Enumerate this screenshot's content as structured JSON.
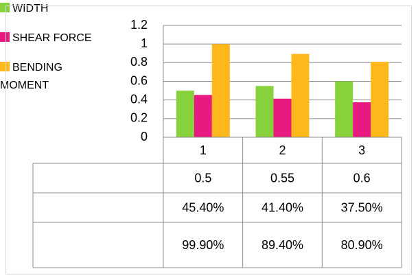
{
  "chart_data": {
    "type": "bar",
    "categories": [
      "1",
      "2",
      "3"
    ],
    "series": [
      {
        "name": "WIDTH",
        "color": "#86d13c",
        "values": [
          0.5,
          0.55,
          0.6
        ]
      },
      {
        "name": "SHEAR FORCE",
        "color": "#e8197f",
        "values": [
          0.454,
          0.414,
          0.375
        ],
        "value_labels": [
          "45.40%",
          "41.40%",
          "37.50%"
        ]
      },
      {
        "name": "BENDING MOMENT",
        "color": "#ffb81c",
        "values": [
          0.999,
          0.894,
          0.809
        ],
        "value_labels": [
          "99.90%",
          "89.40%",
          "80.90%"
        ]
      }
    ],
    "ylim": [
      0,
      1.2
    ],
    "yticks": [
      0,
      0.2,
      0.4,
      0.6,
      0.8,
      1,
      1.2
    ],
    "grid": true,
    "data_table": true
  }
}
